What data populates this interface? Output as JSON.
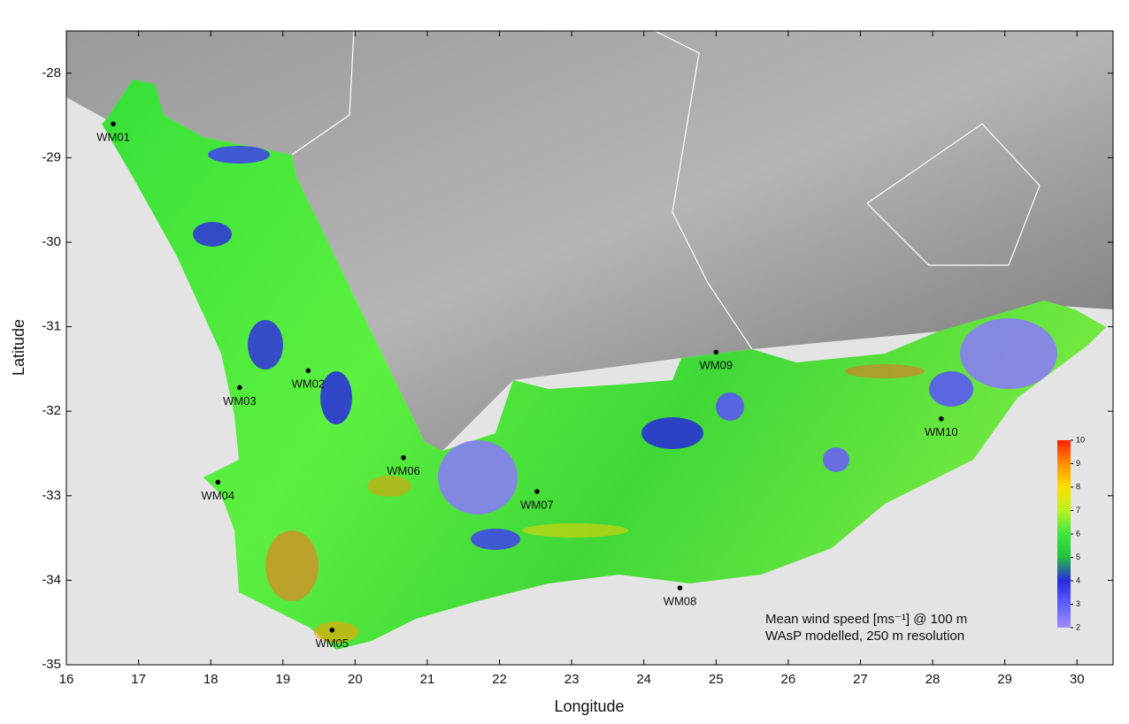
{
  "chart_data": {
    "type": "scatter",
    "x_label": "Longitude",
    "y_label": "Latitude",
    "xlim": [
      16,
      30.5
    ],
    "ylim": [
      -35,
      -27.5
    ],
    "xticks": [
      16,
      17,
      18,
      19,
      20,
      21,
      22,
      23,
      24,
      25,
      26,
      27,
      28,
      29,
      30
    ],
    "yticks": [
      -35,
      -34,
      -33,
      -32,
      -31,
      -30,
      -29,
      -28
    ],
    "point_labels": [
      "WM01",
      "WM02",
      "WM03",
      "WM04",
      "WM05",
      "WM06",
      "WM07",
      "WM08",
      "WM09",
      "WM10"
    ],
    "x": [
      16.65,
      19.35,
      18.4,
      18.1,
      19.68,
      20.67,
      22.52,
      24.5,
      25.0,
      28.12
    ],
    "values": [
      -28.6,
      -31.52,
      -31.72,
      -32.84,
      -34.59,
      -32.55,
      -32.95,
      -34.09,
      -31.3,
      -32.09
    ],
    "color": "#000000",
    "annotations": [
      "Mean wind speed [ms⁻¹] @ 100 m",
      "WAsP modelled, 250 m resolution"
    ],
    "colorbar": {
      "lim": [
        2,
        10
      ],
      "ticks": [
        2,
        3,
        4,
        5,
        6,
        7,
        8,
        9,
        10
      ],
      "colors": [
        "#a08cff",
        "#6060ff",
        "#2828e0",
        "#20c040",
        "#40e840",
        "#b8f020",
        "#ffe000",
        "#ff9000",
        "#ff2000"
      ]
    }
  }
}
